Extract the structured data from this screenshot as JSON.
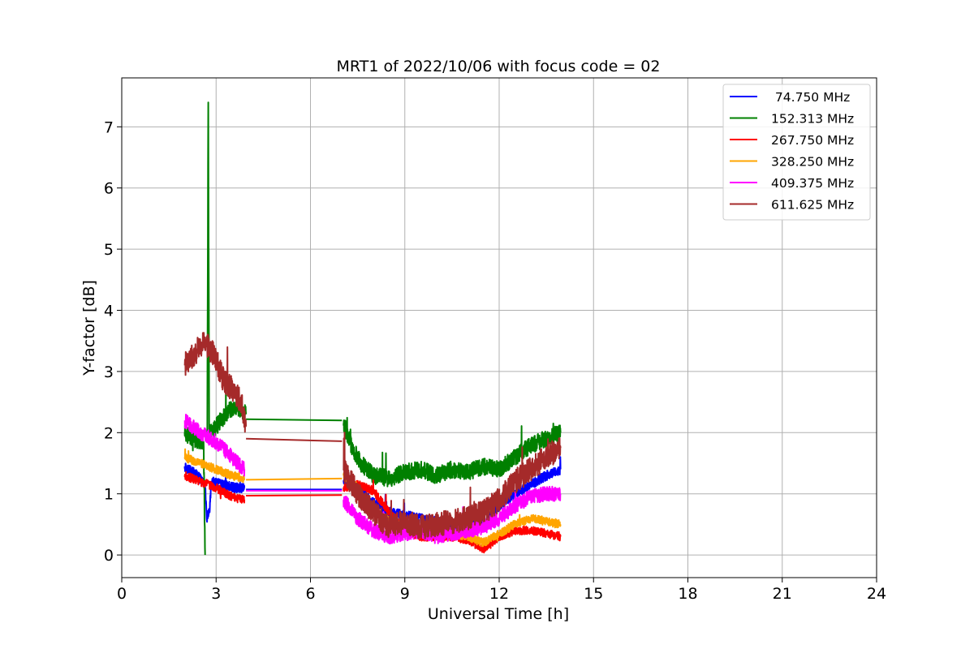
{
  "chart_data": {
    "type": "line",
    "title": "MRT1 of 2022/10/06 with focus code = 02",
    "xlabel": "Universal Time [h]",
    "ylabel": "Y-factor [dB]",
    "xlim": [
      0,
      24
    ],
    "ylim": [
      -0.37,
      7.8
    ],
    "xticks": [
      0,
      3,
      6,
      9,
      12,
      15,
      18,
      21,
      24
    ],
    "yticks": [
      0,
      1,
      2,
      3,
      4,
      5,
      6,
      7
    ],
    "grid": true,
    "legend_position": "top-right",
    "series": [
      {
        "name": " 74.750 MHz",
        "color": "#0000ff",
        "segments": [
          [
            [
              2.0,
              1.45
            ],
            [
              2.4,
              1.3
            ],
            [
              2.65,
              1.15
            ],
            [
              2.7,
              0.6
            ],
            [
              2.8,
              0.75
            ],
            [
              2.85,
              1.2
            ],
            [
              3.2,
              1.15
            ],
            [
              3.6,
              1.1
            ],
            [
              3.9,
              1.1
            ]
          ],
          [
            [
              3.95,
              1.07
            ],
            [
              7.0,
              1.07
            ]
          ],
          [
            [
              7.05,
              1.2
            ],
            [
              7.5,
              1.1
            ],
            [
              8.0,
              0.85
            ],
            [
              8.5,
              0.7
            ],
            [
              9.0,
              0.65
            ],
            [
              9.5,
              0.6
            ],
            [
              10.0,
              0.55
            ],
            [
              10.5,
              0.5
            ],
            [
              11.0,
              0.5
            ],
            [
              11.5,
              0.5
            ],
            [
              12.0,
              0.8
            ],
            [
              12.5,
              1.0
            ],
            [
              13.0,
              1.15
            ],
            [
              13.5,
              1.3
            ],
            [
              13.95,
              1.4
            ]
          ]
        ],
        "noise": 0.08
      },
      {
        "name": "152.313 MHz",
        "color": "#008000",
        "segments": [
          [
            [
              2.0,
              2.0
            ],
            [
              2.3,
              1.9
            ],
            [
              2.6,
              1.85
            ],
            [
              2.65,
              0.0
            ]
          ],
          [
            [
              2.72,
              1.95
            ],
            [
              2.75,
              7.4
            ],
            [
              2.78,
              2.0
            ],
            [
              3.0,
              2.1
            ],
            [
              3.3,
              2.3
            ],
            [
              3.6,
              2.45
            ],
            [
              3.95,
              2.3
            ]
          ],
          [
            [
              3.95,
              2.22
            ],
            [
              7.0,
              2.2
            ]
          ],
          [
            [
              7.05,
              2.15
            ],
            [
              7.3,
              1.8
            ],
            [
              7.6,
              1.5
            ],
            [
              8.0,
              1.3
            ],
            [
              8.5,
              1.25
            ],
            [
              9.0,
              1.35
            ],
            [
              9.5,
              1.4
            ],
            [
              10.0,
              1.3
            ],
            [
              10.5,
              1.4
            ],
            [
              11.0,
              1.35
            ],
            [
              11.5,
              1.45
            ],
            [
              12.0,
              1.4
            ],
            [
              12.5,
              1.6
            ],
            [
              13.0,
              1.8
            ],
            [
              13.5,
              1.9
            ],
            [
              13.95,
              2.0
            ]
          ]
        ],
        "noise": 0.14
      },
      {
        "name": "267.750 MHz",
        "color": "#ff0000",
        "segments": [
          [
            [
              2.0,
              1.3
            ],
            [
              2.5,
              1.2
            ],
            [
              3.0,
              1.1
            ],
            [
              3.5,
              0.95
            ],
            [
              3.9,
              0.9
            ]
          ],
          [
            [
              3.95,
              0.97
            ],
            [
              7.0,
              0.98
            ]
          ],
          [
            [
              7.05,
              1.1
            ],
            [
              7.5,
              1.15
            ],
            [
              8.0,
              1.05
            ],
            [
              8.5,
              0.7
            ],
            [
              9.0,
              0.4
            ],
            [
              9.5,
              0.3
            ],
            [
              10.0,
              0.3
            ],
            [
              10.5,
              0.3
            ],
            [
              11.0,
              0.25
            ],
            [
              11.5,
              0.1
            ],
            [
              12.0,
              0.3
            ],
            [
              12.5,
              0.4
            ],
            [
              13.0,
              0.4
            ],
            [
              13.5,
              0.35
            ],
            [
              13.95,
              0.3
            ]
          ]
        ],
        "noise": 0.07
      },
      {
        "name": "328.250 MHz",
        "color": "#ffa500",
        "segments": [
          [
            [
              2.0,
              1.6
            ],
            [
              2.5,
              1.5
            ],
            [
              3.0,
              1.4
            ],
            [
              3.5,
              1.3
            ],
            [
              3.9,
              1.25
            ]
          ],
          [
            [
              3.95,
              1.23
            ],
            [
              7.0,
              1.25
            ]
          ],
          [
            [
              7.05,
              1.3
            ],
            [
              7.5,
              1.1
            ],
            [
              8.0,
              0.7
            ],
            [
              8.5,
              0.55
            ],
            [
              9.0,
              0.45
            ],
            [
              9.5,
              0.4
            ],
            [
              10.0,
              0.4
            ],
            [
              10.5,
              0.35
            ],
            [
              11.0,
              0.3
            ],
            [
              11.5,
              0.2
            ],
            [
              12.0,
              0.35
            ],
            [
              12.5,
              0.5
            ],
            [
              13.0,
              0.6
            ],
            [
              13.5,
              0.55
            ],
            [
              13.95,
              0.5
            ]
          ]
        ],
        "noise": 0.07
      },
      {
        "name": "409.375 MHz",
        "color": "#ff00ff",
        "segments": [
          [
            [
              2.0,
              2.2
            ],
            [
              2.5,
              2.0
            ],
            [
              3.0,
              1.85
            ],
            [
              3.5,
              1.6
            ],
            [
              3.9,
              1.4
            ]
          ],
          [
            [
              3.95,
              1.05
            ],
            [
              7.0,
              1.05
            ]
          ],
          [
            [
              7.05,
              0.9
            ],
            [
              7.5,
              0.6
            ],
            [
              8.0,
              0.4
            ],
            [
              8.5,
              0.3
            ],
            [
              9.0,
              0.35
            ],
            [
              9.5,
              0.4
            ],
            [
              10.0,
              0.3
            ],
            [
              10.5,
              0.35
            ],
            [
              11.0,
              0.4
            ],
            [
              11.5,
              0.45
            ],
            [
              12.0,
              0.6
            ],
            [
              12.5,
              0.8
            ],
            [
              13.0,
              0.95
            ],
            [
              13.5,
              1.0
            ],
            [
              13.95,
              1.0
            ]
          ]
        ],
        "noise": 0.12
      },
      {
        "name": "611.625 MHz",
        "color": "#a52a2a",
        "segments": [
          [
            [
              2.0,
              3.1
            ],
            [
              2.4,
              3.35
            ],
            [
              2.6,
              3.5
            ],
            [
              2.9,
              3.3
            ],
            [
              3.2,
              2.9
            ],
            [
              3.5,
              2.7
            ],
            [
              3.8,
              2.5
            ],
            [
              3.95,
              2.1
            ]
          ],
          [
            [
              3.95,
              1.9
            ],
            [
              7.0,
              1.86
            ]
          ],
          [
            [
              7.05,
              1.4
            ],
            [
              7.5,
              1.0
            ],
            [
              8.0,
              0.7
            ],
            [
              8.5,
              0.45
            ],
            [
              9.0,
              0.55
            ],
            [
              9.5,
              0.45
            ],
            [
              10.0,
              0.5
            ],
            [
              10.5,
              0.55
            ],
            [
              11.0,
              0.6
            ],
            [
              11.5,
              0.7
            ],
            [
              12.0,
              0.9
            ],
            [
              12.5,
              1.2
            ],
            [
              13.0,
              1.4
            ],
            [
              13.5,
              1.6
            ],
            [
              13.95,
              1.75
            ]
          ]
        ],
        "noise": 0.2
      }
    ]
  }
}
